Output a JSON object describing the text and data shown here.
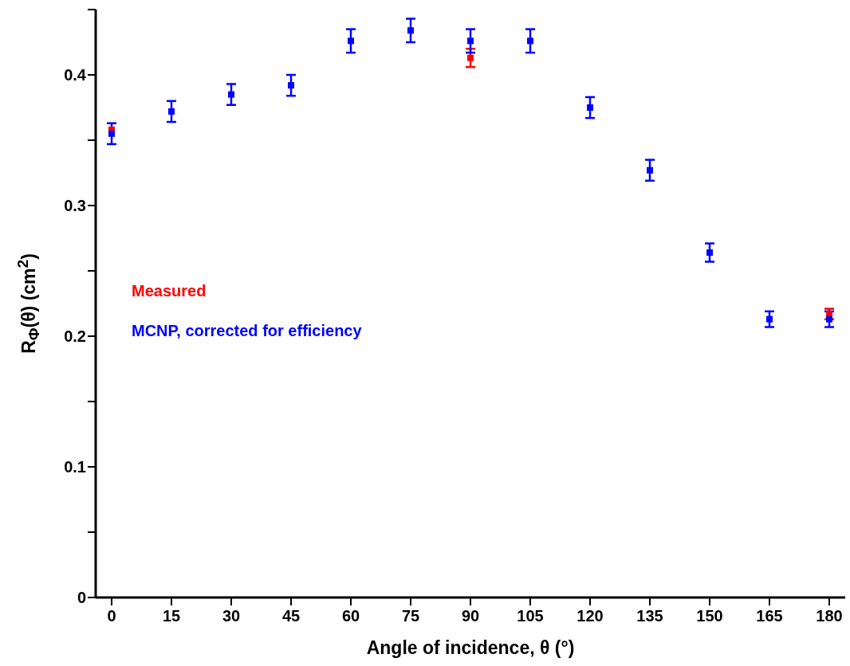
{
  "chart_data": {
    "type": "scatter",
    "xlabel": "Angle of incidence, θ (°)",
    "ylabel": "R$_{Φ}$(θ) (cm$^{2}$)",
    "x": [
      0,
      15,
      30,
      45,
      60,
      75,
      90,
      105,
      120,
      135,
      150,
      165,
      180
    ],
    "series": [
      {
        "name": "Measured",
        "color": "#ff0000",
        "values": [
          0.358,
          null,
          null,
          null,
          null,
          null,
          0.413,
          null,
          null,
          null,
          null,
          null,
          0.217
        ],
        "errors": [
          null,
          null,
          null,
          null,
          null,
          null,
          0.007,
          null,
          null,
          null,
          null,
          null,
          0.004
        ]
      },
      {
        "name": "MCNP, corrected for efficiency",
        "color": "#0000ff",
        "values": [
          0.355,
          0.372,
          0.385,
          0.392,
          0.426,
          0.434,
          0.426,
          0.426,
          0.375,
          0.327,
          0.264,
          0.213,
          0.213
        ],
        "errors": [
          0.008,
          0.008,
          0.008,
          0.008,
          0.009,
          0.009,
          0.009,
          0.009,
          0.008,
          0.008,
          0.007,
          0.006,
          0.006
        ]
      }
    ],
    "xlim": [
      -4,
      184
    ],
    "xticks": [
      0,
      15,
      30,
      45,
      60,
      75,
      90,
      105,
      120,
      135,
      150,
      165,
      180
    ],
    "ylim": [
      0,
      0.45
    ],
    "yticks": [
      0,
      {
        "value": 0.05,
        "label": null
      },
      0.1,
      {
        "value": 0.15,
        "label": null
      },
      0.2,
      {
        "value": 0.25,
        "label": null
      },
      0.3,
      {
        "value": 0.35,
        "label": null
      },
      0.4,
      {
        "value": 0.45,
        "label": null
      }
    ],
    "marker": "square",
    "legend": "left",
    "grid": false
  }
}
